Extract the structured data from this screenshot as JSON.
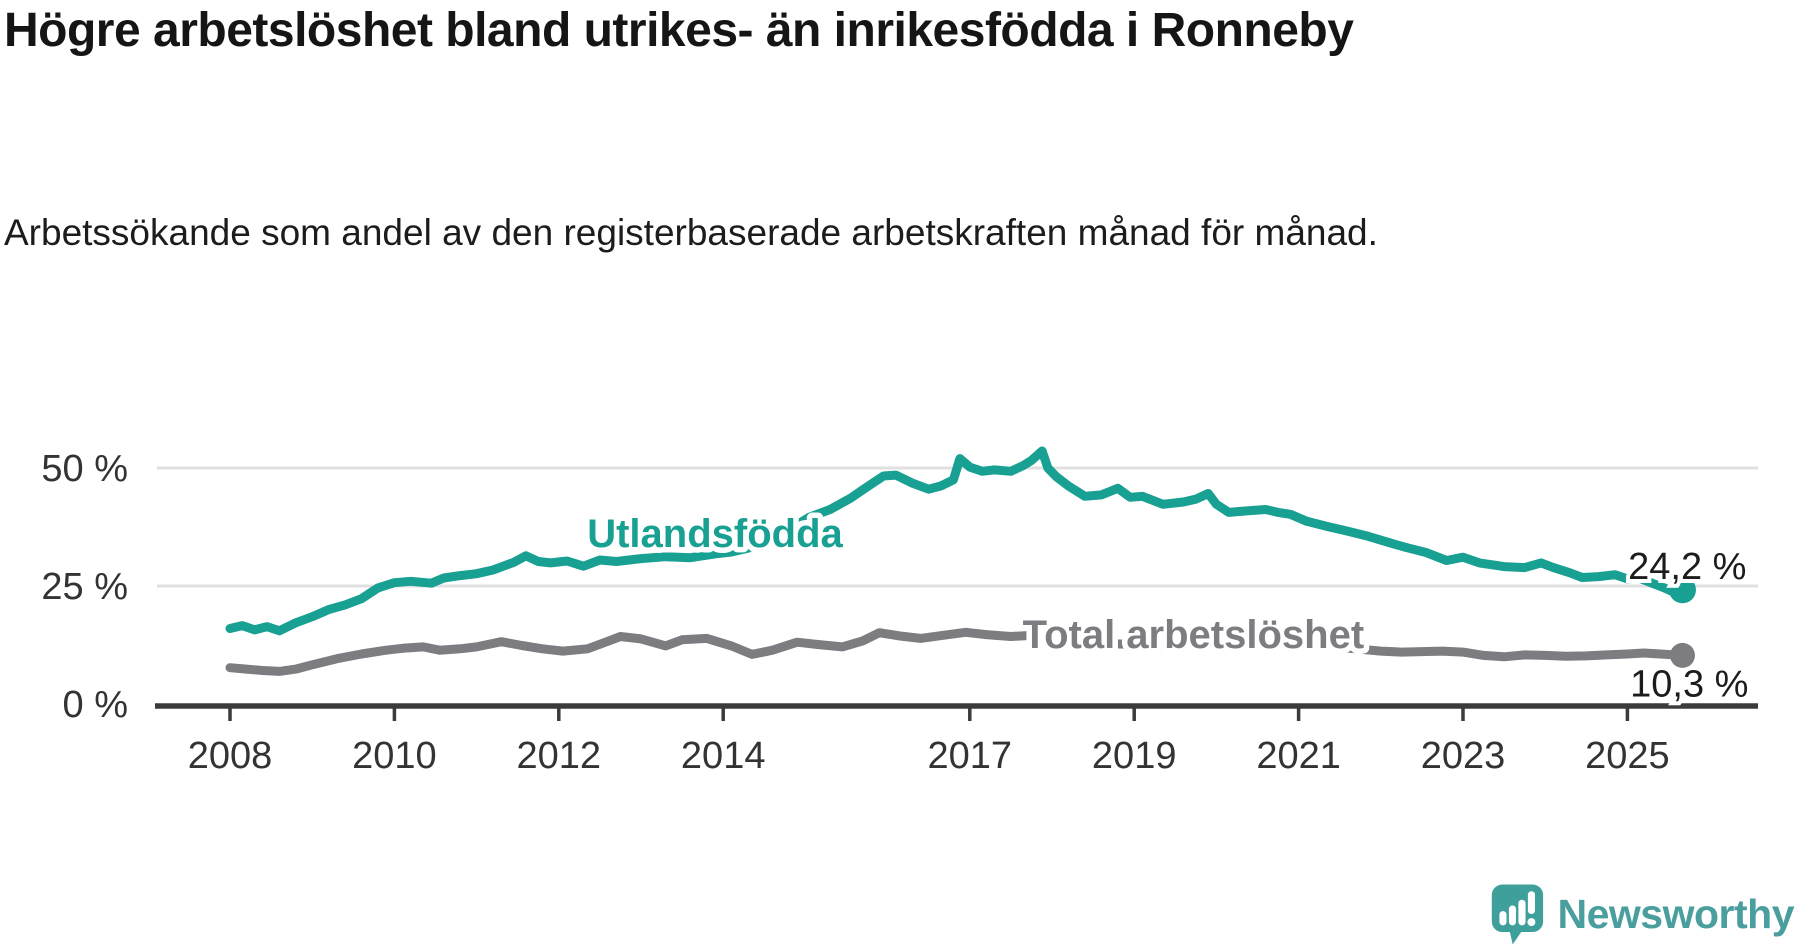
{
  "header": {
    "title": "Högre arbetslöshet bland utrikes- än inrikesfödda i Ronneby",
    "subtitle": "Arbetssökande som andel av den registerbaserade arbetskraften månad för månad."
  },
  "branding": {
    "logo_text": "Newsworthy",
    "logo_icon": "speech-bubble-bar-chart-exclamation",
    "logo_color": "#4a9e9e",
    "logo_bubble_color": "#3fa09b"
  },
  "colors": {
    "accent_teal": "#18a093",
    "series_gray": "#7c7c81",
    "grid": "#e0e0e0",
    "axis": "#3b3b3b",
    "tick_text": "#333333",
    "annotation_text": "#1c1c1c"
  },
  "chart_data": {
    "type": "line",
    "grid": "horizontal-only",
    "legend_position": "inline-labels-on-lines",
    "x_base": 2008,
    "xlim": [
      2007.1,
      2026.6
    ],
    "ylim": [
      0,
      68
    ],
    "x_tick_years": [
      2008,
      2010,
      2012,
      2014,
      2017,
      2019,
      2021,
      2023,
      2025
    ],
    "y_ticks": [
      {
        "value": 0,
        "label": "0 %"
      },
      {
        "value": 25,
        "label": "25 %"
      },
      {
        "value": 50,
        "label": "50 %"
      }
    ],
    "series": [
      {
        "name": "Utlandsfödda",
        "color": "#18a093",
        "end_label": "24,2 %",
        "end_value": 24.2,
        "label_anchor": {
          "x": 2013.9,
          "y": 33.3
        },
        "points": [
          [
            2008.0,
            16.0
          ],
          [
            2008.15,
            16.6
          ],
          [
            2008.3,
            15.7
          ],
          [
            2008.45,
            16.4
          ],
          [
            2008.6,
            15.5
          ],
          [
            2008.8,
            17.2
          ],
          [
            2009.0,
            18.5
          ],
          [
            2009.2,
            20.0
          ],
          [
            2009.4,
            21.0
          ],
          [
            2009.6,
            22.3
          ],
          [
            2009.8,
            24.6
          ],
          [
            2010.0,
            25.7
          ],
          [
            2010.2,
            26.0
          ],
          [
            2010.45,
            25.6
          ],
          [
            2010.6,
            26.7
          ],
          [
            2010.8,
            27.2
          ],
          [
            2011.0,
            27.6
          ],
          [
            2011.2,
            28.4
          ],
          [
            2011.45,
            30.0
          ],
          [
            2011.6,
            31.4
          ],
          [
            2011.75,
            30.2
          ],
          [
            2011.9,
            29.9
          ],
          [
            2012.1,
            30.3
          ],
          [
            2012.3,
            29.2
          ],
          [
            2012.5,
            30.5
          ],
          [
            2012.7,
            30.2
          ],
          [
            2013.0,
            30.8
          ],
          [
            2013.3,
            31.2
          ],
          [
            2013.6,
            31.0
          ],
          [
            2013.9,
            31.8
          ],
          [
            2014.1,
            32.2
          ],
          [
            2014.3,
            33.0
          ],
          [
            2014.6,
            35.5
          ],
          [
            2014.85,
            37.5
          ],
          [
            2015.05,
            39.6
          ],
          [
            2015.3,
            41.2
          ],
          [
            2015.55,
            43.6
          ],
          [
            2015.75,
            46.0
          ],
          [
            2015.95,
            48.3
          ],
          [
            2016.1,
            48.5
          ],
          [
            2016.3,
            46.8
          ],
          [
            2016.5,
            45.5
          ],
          [
            2016.65,
            46.2
          ],
          [
            2016.8,
            47.5
          ],
          [
            2016.88,
            52.0
          ],
          [
            2017.0,
            50.2
          ],
          [
            2017.15,
            49.3
          ],
          [
            2017.3,
            49.6
          ],
          [
            2017.5,
            49.3
          ],
          [
            2017.65,
            50.5
          ],
          [
            2017.75,
            51.6
          ],
          [
            2017.88,
            53.6
          ],
          [
            2017.95,
            50.0
          ],
          [
            2018.05,
            48.2
          ],
          [
            2018.2,
            46.2
          ],
          [
            2018.4,
            44.0
          ],
          [
            2018.6,
            44.3
          ],
          [
            2018.8,
            45.7
          ],
          [
            2018.95,
            43.8
          ],
          [
            2019.1,
            44.0
          ],
          [
            2019.35,
            42.3
          ],
          [
            2019.6,
            42.8
          ],
          [
            2019.75,
            43.4
          ],
          [
            2019.9,
            44.6
          ],
          [
            2020.0,
            42.3
          ],
          [
            2020.15,
            40.6
          ],
          [
            2020.35,
            40.9
          ],
          [
            2020.6,
            41.2
          ],
          [
            2020.75,
            40.6
          ],
          [
            2020.9,
            40.2
          ],
          [
            2021.1,
            38.7
          ],
          [
            2021.35,
            37.6
          ],
          [
            2021.6,
            36.6
          ],
          [
            2021.85,
            35.5
          ],
          [
            2022.1,
            34.2
          ],
          [
            2022.3,
            33.2
          ],
          [
            2022.55,
            32.1
          ],
          [
            2022.8,
            30.4
          ],
          [
            2023.0,
            31.1
          ],
          [
            2023.2,
            29.9
          ],
          [
            2023.5,
            29.1
          ],
          [
            2023.75,
            28.9
          ],
          [
            2023.95,
            29.9
          ],
          [
            2024.1,
            28.9
          ],
          [
            2024.3,
            27.8
          ],
          [
            2024.45,
            26.8
          ],
          [
            2024.65,
            27.0
          ],
          [
            2024.85,
            27.4
          ],
          [
            2025.0,
            26.5
          ],
          [
            2025.1,
            27.0
          ],
          [
            2025.3,
            25.6
          ],
          [
            2025.45,
            24.6
          ],
          [
            2025.55,
            23.8
          ],
          [
            2025.67,
            24.2
          ]
        ]
      },
      {
        "name": "Total arbetslöshet",
        "color": "#7c7c81",
        "end_label": "10,3 %",
        "end_value": 10.3,
        "label_anchor": {
          "x": 2019.72,
          "y": 11.9
        },
        "points": [
          [
            2008.0,
            7.7
          ],
          [
            2008.2,
            7.4
          ],
          [
            2008.4,
            7.1
          ],
          [
            2008.6,
            6.9
          ],
          [
            2008.8,
            7.4
          ],
          [
            2009.0,
            8.3
          ],
          [
            2009.3,
            9.6
          ],
          [
            2009.6,
            10.6
          ],
          [
            2009.9,
            11.4
          ],
          [
            2010.1,
            11.8
          ],
          [
            2010.35,
            12.1
          ],
          [
            2010.55,
            11.4
          ],
          [
            2010.8,
            11.7
          ],
          [
            2011.0,
            12.1
          ],
          [
            2011.3,
            13.2
          ],
          [
            2011.55,
            12.4
          ],
          [
            2011.8,
            11.7
          ],
          [
            2012.05,
            11.2
          ],
          [
            2012.35,
            11.7
          ],
          [
            2012.6,
            13.3
          ],
          [
            2012.75,
            14.3
          ],
          [
            2013.0,
            13.8
          ],
          [
            2013.3,
            12.3
          ],
          [
            2013.5,
            13.6
          ],
          [
            2013.8,
            13.9
          ],
          [
            2014.1,
            12.3
          ],
          [
            2014.35,
            10.5
          ],
          [
            2014.6,
            11.4
          ],
          [
            2014.9,
            13.1
          ],
          [
            2015.15,
            12.6
          ],
          [
            2015.45,
            12.1
          ],
          [
            2015.7,
            13.4
          ],
          [
            2015.9,
            15.1
          ],
          [
            2016.15,
            14.4
          ],
          [
            2016.4,
            13.9
          ],
          [
            2016.7,
            14.6
          ],
          [
            2016.95,
            15.2
          ],
          [
            2017.2,
            14.7
          ],
          [
            2017.5,
            14.3
          ],
          [
            2017.8,
            14.6
          ],
          [
            2018.1,
            13.8
          ],
          [
            2018.4,
            13.0
          ],
          [
            2018.7,
            12.8
          ],
          [
            2019.0,
            12.6
          ],
          [
            2019.3,
            12.2
          ],
          [
            2019.6,
            12.4
          ],
          [
            2019.9,
            12.8
          ],
          [
            2020.2,
            13.4
          ],
          [
            2020.5,
            13.7
          ],
          [
            2020.8,
            13.2
          ],
          [
            2021.1,
            12.6
          ],
          [
            2021.4,
            12.1
          ],
          [
            2021.7,
            11.7
          ],
          [
            2022.0,
            11.2
          ],
          [
            2022.25,
            11.0
          ],
          [
            2022.5,
            11.1
          ],
          [
            2022.75,
            11.2
          ],
          [
            2023.0,
            11.0
          ],
          [
            2023.25,
            10.3
          ],
          [
            2023.5,
            10.0
          ],
          [
            2023.75,
            10.4
          ],
          [
            2024.0,
            10.3
          ],
          [
            2024.25,
            10.1
          ],
          [
            2024.5,
            10.2
          ],
          [
            2024.75,
            10.4
          ],
          [
            2025.0,
            10.6
          ],
          [
            2025.2,
            10.8
          ],
          [
            2025.4,
            10.6
          ],
          [
            2025.67,
            10.3
          ]
        ]
      }
    ]
  }
}
